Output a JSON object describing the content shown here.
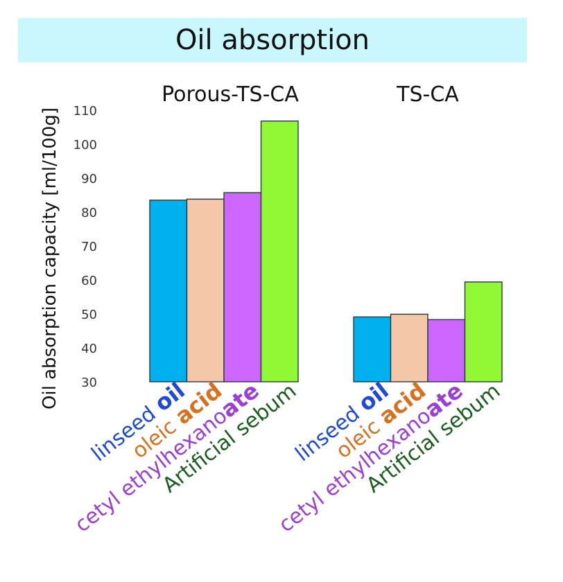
{
  "chart_data": {
    "type": "bar",
    "title": "Oil absorption",
    "ylabel": "Oil absorption capacity [ml/100g]",
    "ylim": [
      30,
      110
    ],
    "yticks": [
      30,
      40,
      50,
      60,
      70,
      80,
      90,
      100,
      110
    ],
    "grid": false,
    "panels": [
      {
        "title": "Porous-TS-CA",
        "categories": [
          {
            "prefix": "linseed ",
            "emphasis": "oil",
            "color": "#1f49d6"
          },
          {
            "prefix": "oleic ",
            "emphasis": "acid",
            "color": "#d8701e"
          },
          {
            "prefix": "cetyl ethylhexano",
            "emphasis": "ate",
            "color": "#9b3fd4"
          },
          {
            "prefix": "Artificial sebum",
            "emphasis": "",
            "color": "#1b5e20"
          }
        ],
        "values": [
          83.5,
          83.8,
          85.7,
          106.8
        ],
        "bar_colors": [
          "#00b0ef",
          "#f5c7aa",
          "#cc66ff",
          "#92f734"
        ]
      },
      {
        "title": "TS-CA",
        "categories": [
          {
            "prefix": "linseed ",
            "emphasis": "oil",
            "color": "#1f49d6"
          },
          {
            "prefix": "oleic ",
            "emphasis": "acid",
            "color": "#d8701e"
          },
          {
            "prefix": "cetyl ethylhexano",
            "emphasis": "ate",
            "color": "#9b3fd4"
          },
          {
            "prefix": "Artificial sebum",
            "emphasis": "",
            "color": "#1b5e20"
          }
        ],
        "values": [
          49.1,
          49.9,
          48.3,
          59.4
        ],
        "bar_colors": [
          "#00b0ef",
          "#f5c7aa",
          "#cc66ff",
          "#92f734"
        ]
      }
    ]
  }
}
